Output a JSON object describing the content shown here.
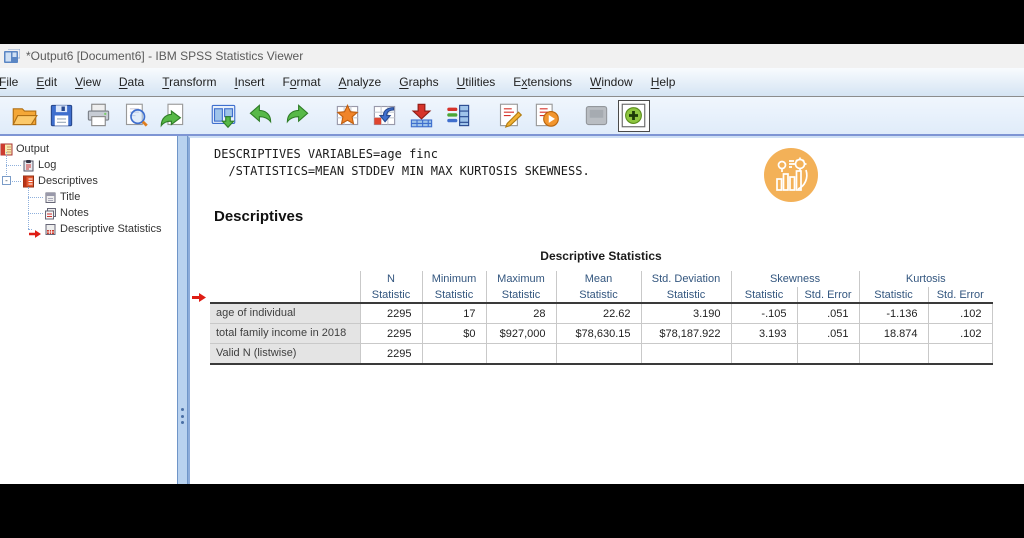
{
  "window": {
    "title": "*Output6 [Document6] - IBM SPSS Statistics Viewer"
  },
  "menubar": {
    "items": [
      {
        "label": "File",
        "underline": 0
      },
      {
        "label": "Edit",
        "underline": 0
      },
      {
        "label": "View",
        "underline": 0
      },
      {
        "label": "Data",
        "underline": 0
      },
      {
        "label": "Transform",
        "underline": 0
      },
      {
        "label": "Insert",
        "underline": 0
      },
      {
        "label": "Format",
        "underline": 1
      },
      {
        "label": "Analyze",
        "underline": 0
      },
      {
        "label": "Graphs",
        "underline": 0
      },
      {
        "label": "Utilities",
        "underline": 0
      },
      {
        "label": "Extensions",
        "underline": 1
      },
      {
        "label": "Window",
        "underline": 0
      },
      {
        "label": "Help",
        "underline": 0
      }
    ]
  },
  "toolbar": {
    "buttons": [
      {
        "name": "open-folder-icon"
      },
      {
        "name": "save-icon"
      },
      {
        "name": "print-icon"
      },
      {
        "name": "print-preview-icon"
      },
      {
        "name": "export-icon"
      },
      {
        "name": "goto-window-icon",
        "gap_before": true
      },
      {
        "name": "undo-icon"
      },
      {
        "name": "redo-icon"
      },
      {
        "name": "goto-data-star-icon",
        "gap_before": true
      },
      {
        "name": "goto-case-icon"
      },
      {
        "name": "insert-cases-icon"
      },
      {
        "name": "variables-icon"
      },
      {
        "name": "edit-syntax-icon",
        "gap_before": true
      },
      {
        "name": "run-script-icon"
      },
      {
        "name": "inactive-box-icon",
        "gap_before": true
      },
      {
        "name": "show-hide-icon",
        "pressed": true
      }
    ]
  },
  "sidebar": {
    "items": [
      {
        "label": "Output",
        "level": 0,
        "icon": "output-icon"
      },
      {
        "label": "Log",
        "level": 1,
        "icon": "log-icon"
      },
      {
        "label": "Descriptives",
        "level": 1,
        "icon": "descriptives-icon",
        "collapser": true
      },
      {
        "label": "Title",
        "level": 2,
        "icon": "title-icon"
      },
      {
        "label": "Notes",
        "level": 2,
        "icon": "notes-icon"
      },
      {
        "label": "Descriptive Statistics",
        "level": 2,
        "icon": "stats-icon",
        "arrow": true
      }
    ]
  },
  "log": {
    "lines": [
      "DESCRIPTIVES VARIABLES=age finc",
      "  /STATISTICS=MEAN STDDEV MIN MAX KURTOSIS SKEWNESS."
    ]
  },
  "section": {
    "heading": "Descriptives"
  },
  "table": {
    "title": "Descriptive Statistics",
    "col_groups": [
      {
        "label": "N",
        "span": 1
      },
      {
        "label": "Minimum",
        "span": 1
      },
      {
        "label": "Maximum",
        "span": 1
      },
      {
        "label": "Mean",
        "span": 1
      },
      {
        "label": "Std. Deviation",
        "span": 1
      },
      {
        "label": "Skewness",
        "span": 2
      },
      {
        "label": "Kurtosis",
        "span": 2
      }
    ],
    "sub_headers": [
      "Statistic",
      "Statistic",
      "Statistic",
      "Statistic",
      "Statistic",
      "Statistic",
      "Std. Error",
      "Statistic",
      "Std. Error"
    ],
    "rows": [
      {
        "label": "age of individual",
        "values": [
          "2295",
          "17",
          "28",
          "22.62",
          "3.190",
          "-.105",
          ".051",
          "-1.136",
          ".102"
        ]
      },
      {
        "label": "total family income in 2018",
        "values": [
          "2295",
          "$0",
          "$927,000",
          "$78,630.15",
          "$78,187.922",
          "3.193",
          ".051",
          "18.874",
          ".102"
        ]
      },
      {
        "label": "Valid N (listwise)",
        "values": [
          "2295",
          "",
          "",
          "",
          "",
          "",
          "",
          "",
          ""
        ]
      }
    ]
  },
  "colors": {
    "titlebar_bg": "#f1f1f1",
    "menubar_bg": "#d5e4f3",
    "toolbar_bg": "#e0ecfa",
    "header_text": "#33567f",
    "label_cell_bg": "#e4e4e4",
    "arrow_red": "#df1d14",
    "watermark_orange": "#f2a846",
    "splitter_blue": "#b9d2ef",
    "dark_rule": "#3a3a3a",
    "light_rule": "#c9c9c9"
  }
}
